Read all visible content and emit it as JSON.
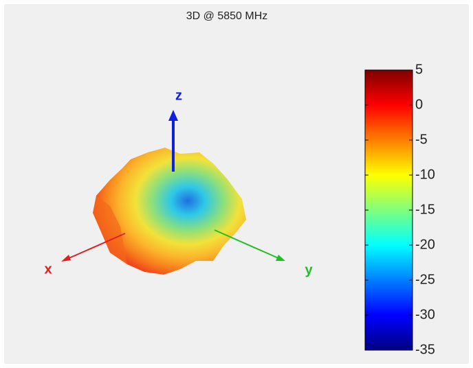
{
  "chart_data": {
    "type": "radiation-pattern-3d",
    "title": "3D @ 5850 MHz",
    "axes": {
      "x": "x",
      "y": "y",
      "z": "z"
    },
    "colorbar": {
      "colormap": "jet",
      "lim": [
        -35,
        5
      ],
      "ticks": [
        5,
        0,
        -5,
        -10,
        -15,
        -20,
        -25,
        -30,
        -35
      ]
    }
  }
}
